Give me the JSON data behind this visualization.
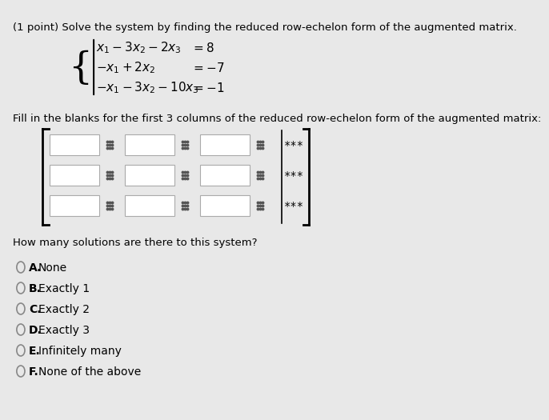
{
  "background_color": "#e8e8e8",
  "title_text": "(1 point) Solve the system by finding the reduced row-echelon form of the augmented matrix.",
  "eq1": "x₁ − 3x₂ − 2x₃       = 8",
  "eq2": "−x₁ + 2x₂              = −7",
  "eq3": "−x₁ − 3x₂ − 10x₃   = −1",
  "fill_text": "Fill in the blanks for the first 3 columns of the reduced row-echelon form of the augmented matrix:",
  "solutions_text": "How many solutions are there to this system?",
  "options": [
    {
      "label": "A.",
      "text": "None"
    },
    {
      "label": "B.",
      "text": "Exactly 1"
    },
    {
      "label": "C.",
      "text": "Exactly 2"
    },
    {
      "label": "D.",
      "text": "Exactly 3"
    },
    {
      "label": "E.",
      "text": "Infinitely many"
    },
    {
      "label": "F.",
      "text": "None of the above"
    }
  ],
  "text_color": "#000000",
  "box_fill": "#ffffff",
  "box_border": "#aaaaaa",
  "dots_color": "#555555",
  "stars_color": "#000000",
  "bracket_color": "#000000",
  "circle_color": "#888888"
}
